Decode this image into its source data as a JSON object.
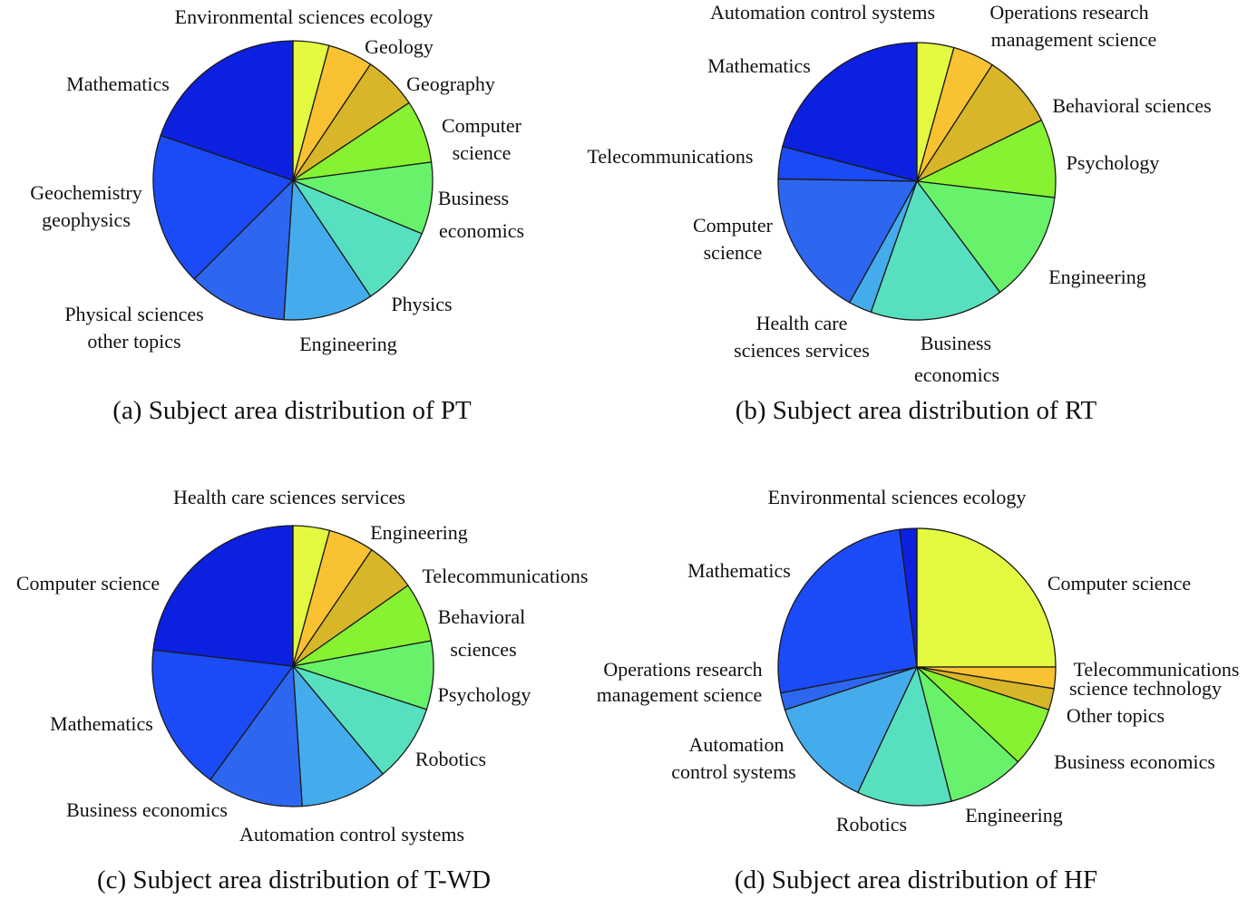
{
  "chart_data": [
    {
      "type": "pie",
      "title": "(a) Subject area distribution of PT",
      "slices": [
        {
          "label": "Environmental sciences ecology",
          "value": 4,
          "color": "#e3fa41"
        },
        {
          "label": "Geology",
          "value": 5,
          "color": "#f8c233"
        },
        {
          "label": "Geography",
          "value": 6,
          "color": "#d8b629"
        },
        {
          "label": "Computer science",
          "value": 7,
          "color": "#86f232"
        },
        {
          "label": "Business economics",
          "value": 8,
          "color": "#68f26b"
        },
        {
          "label": "Physics",
          "value": 9,
          "color": "#57e0c0"
        },
        {
          "label": "Engineering",
          "value": 10,
          "color": "#44acec"
        },
        {
          "label": "Physical sciences other topics",
          "value": 11,
          "color": "#2d67f0"
        },
        {
          "label": "Geochemistry geophysics",
          "value": 17,
          "color": "#1b4bf6"
        },
        {
          "label": "Mathematics",
          "value": 19,
          "color": "#0c20e0"
        }
      ]
    },
    {
      "type": "pie",
      "title": "(b) Subject area distribution of RT",
      "slices": [
        {
          "label": "Automation control systems",
          "value": 4,
          "color": "#e3fa41"
        },
        {
          "label": "Operations research management science",
          "value": 4.5,
          "color": "#f8c233"
        },
        {
          "label": "Behavioral sciences",
          "value": 8,
          "color": "#d8b629"
        },
        {
          "label": "Psychology",
          "value": 8.5,
          "color": "#86f232"
        },
        {
          "label": "Engineering",
          "value": 12,
          "color": "#68f26b"
        },
        {
          "label": "Business economics",
          "value": 14.5,
          "color": "#57e0c0"
        },
        {
          "label": "Health care sciences services",
          "value": 2.5,
          "color": "#44acec"
        },
        {
          "label": "Computer science",
          "value": 16,
          "color": "#2d67f0"
        },
        {
          "label": "Telecommunications",
          "value": 3.5,
          "color": "#1b4bf6"
        },
        {
          "label": "Mathematics",
          "value": 19.5,
          "color": "#0c20e0"
        }
      ]
    },
    {
      "type": "pie",
      "title": "(c) Subject area distribution of T-WD",
      "slices": [
        {
          "label": "Health care sciences services",
          "value": 4,
          "color": "#e3fa41"
        },
        {
          "label": "Engineering",
          "value": 5,
          "color": "#f8c233"
        },
        {
          "label": "Telecommunications",
          "value": 5.5,
          "color": "#d8b629"
        },
        {
          "label": "Behavioral sciences",
          "value": 6.5,
          "color": "#86f232"
        },
        {
          "label": "Psychology",
          "value": 7.5,
          "color": "#68f26b"
        },
        {
          "label": "Robotics",
          "value": 8.5,
          "color": "#57e0c0"
        },
        {
          "label": "Automation control systems",
          "value": 9.5,
          "color": "#44acec"
        },
        {
          "label": "Business economics",
          "value": 10.5,
          "color": "#2d67f0"
        },
        {
          "label": "Mathematics",
          "value": 16,
          "color": "#1b4bf6"
        },
        {
          "label": "Computer science",
          "value": 22,
          "color": "#0c20e0"
        }
      ]
    },
    {
      "type": "pie",
      "title": "(d) Subject area distribution of HF",
      "slices": [
        {
          "label": "Computer science",
          "value": 25,
          "color": "#e3fa41"
        },
        {
          "label": "Telecommunications",
          "value": 2.5,
          "color": "#f8c233"
        },
        {
          "label": "science technology Other topics",
          "value": 2.5,
          "color": "#d8b629"
        },
        {
          "label": "Business economics",
          "value": 7,
          "color": "#86f232"
        },
        {
          "label": "Engineering",
          "value": 9,
          "color": "#68f26b"
        },
        {
          "label": "Robotics",
          "value": 11,
          "color": "#57e0c0"
        },
        {
          "label": "Automation control systems",
          "value": 13,
          "color": "#44acec"
        },
        {
          "label": "Operations research management science",
          "value": 2,
          "color": "#2d67f0"
        },
        {
          "label": "Mathematics",
          "value": 26,
          "color": "#1b4bf6"
        },
        {
          "label": "Environmental sciences ecology",
          "value": 2,
          "color": "#0c20e0"
        }
      ]
    }
  ]
}
